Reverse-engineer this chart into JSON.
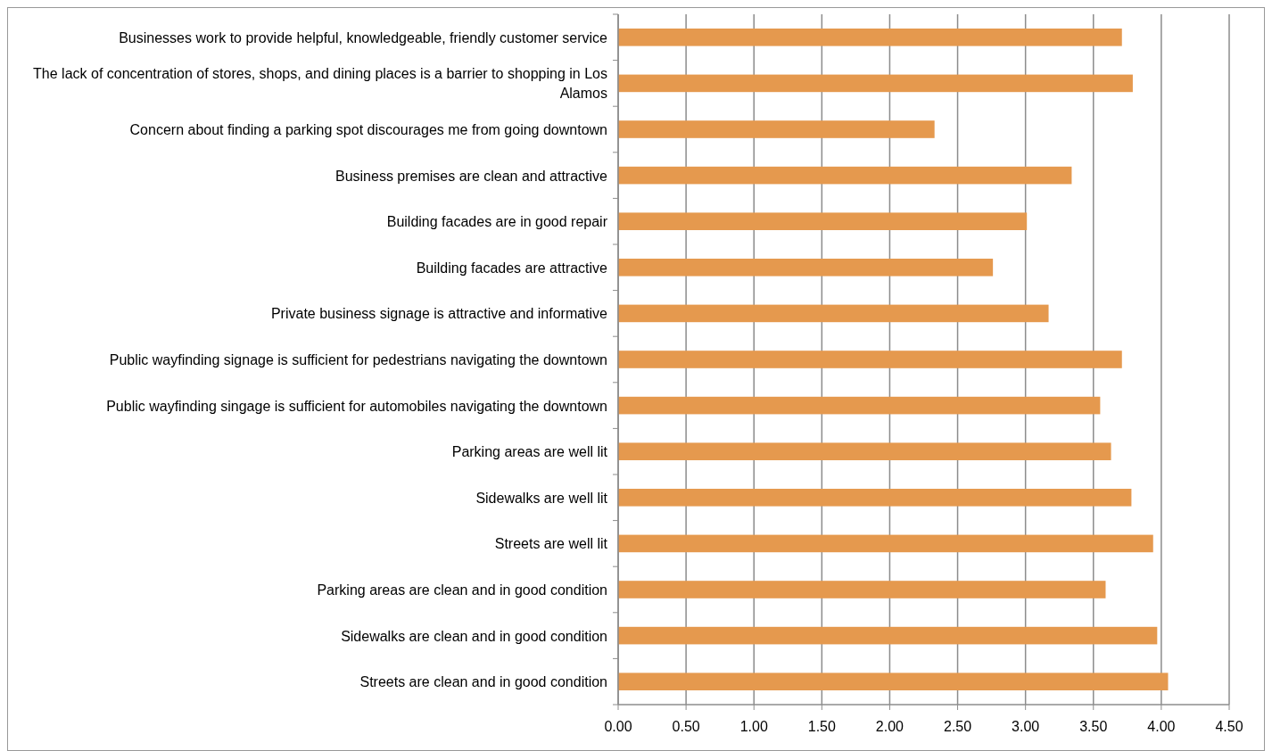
{
  "chart_data": {
    "type": "bar",
    "orientation": "horizontal",
    "categories": [
      "Businesses work to provide helpful, knowledgeable, friendly customer service",
      "The lack of concentration of stores, shops, and dining places is a barrier to shopping in Los Alamos",
      "Concern about finding a parking spot discourages me from going downtown",
      "Business premises are clean and attractive",
      "Building facades are in good repair",
      "Building facades are attractive",
      "Private business signage is attractive and informative",
      "Public wayfinding signage is sufficient for pedestrians navigating the downtown",
      "Public wayfinding singage is sufficient for automobiles navigating the downtown",
      "Parking areas are well lit",
      "Sidewalks are well lit",
      "Streets are well lit",
      "Parking areas are clean and in good condition",
      "Sidewalks are clean and in good condition",
      "Streets are clean and in good condition"
    ],
    "values": [
      3.71,
      3.79,
      2.33,
      3.34,
      3.01,
      2.76,
      3.17,
      3.71,
      3.55,
      3.63,
      3.78,
      3.94,
      3.59,
      3.97,
      4.05
    ],
    "color": "#e5994e",
    "xlim": [
      0,
      4.5
    ],
    "xticks": [
      {
        "value": 0,
        "label": "0.00"
      },
      {
        "value": 0.5,
        "label": "0.50"
      },
      {
        "value": 1,
        "label": "1.00"
      },
      {
        "value": 1.5,
        "label": "1.50"
      },
      {
        "value": 2,
        "label": "2.00"
      },
      {
        "value": 2.5,
        "label": "2.50"
      },
      {
        "value": 3,
        "label": "3.00"
      },
      {
        "value": 3.5,
        "label": "3.50"
      },
      {
        "value": 4,
        "label": "4.00"
      },
      {
        "value": 4.5,
        "label": "4.50"
      }
    ],
    "grid": "x",
    "legend": false
  }
}
